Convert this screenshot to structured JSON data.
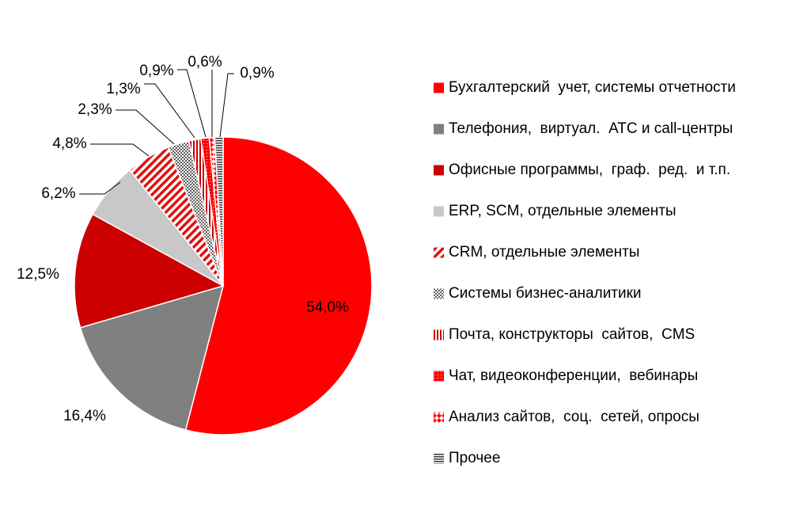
{
  "chart_data": {
    "type": "pie",
    "categories": [
      "Бухгалтерский  учет, системы отчетности",
      "Телефония,  виртуал.  АТС и call-центры",
      "Офисные программы,  граф.  ред.  и т.п.",
      "ERP, SCM, отдельные элементы",
      "CRM, отдельные элементы",
      "Системы бизнес-аналитики",
      "Почта, конструкторы  сайтов,  CMS",
      "Чат, видеоконференции,  вебинары",
      "Анализ сайтов,  соц.  сетей, опросы",
      "Прочее"
    ],
    "values": [
      54.0,
      16.4,
      12.5,
      6.2,
      4.8,
      2.3,
      1.3,
      0.9,
      0.6,
      0.9
    ],
    "value_labels": [
      "54,0%",
      "16,4%",
      "12,5%",
      "6,2%",
      "4,8%",
      "2,3%",
      "1,3%",
      "0,9%",
      "0,6%",
      "0,9%"
    ],
    "start": "12 o'clock, clockwise",
    "legend_position": "right",
    "colors": [
      "#ff0000",
      "#808080",
      "#cc0000",
      "#c8c8c8",
      "#e01010",
      "#808080",
      "#cc0000",
      "#ff0000",
      "#ff0000",
      "#404040"
    ],
    "patterns": [
      "solid",
      "solid",
      "solid",
      "solid",
      "diagonal-stripes",
      "checker",
      "vertical-stripes",
      "solid-dotted",
      "diamond",
      "horizontal-stripes"
    ]
  }
}
